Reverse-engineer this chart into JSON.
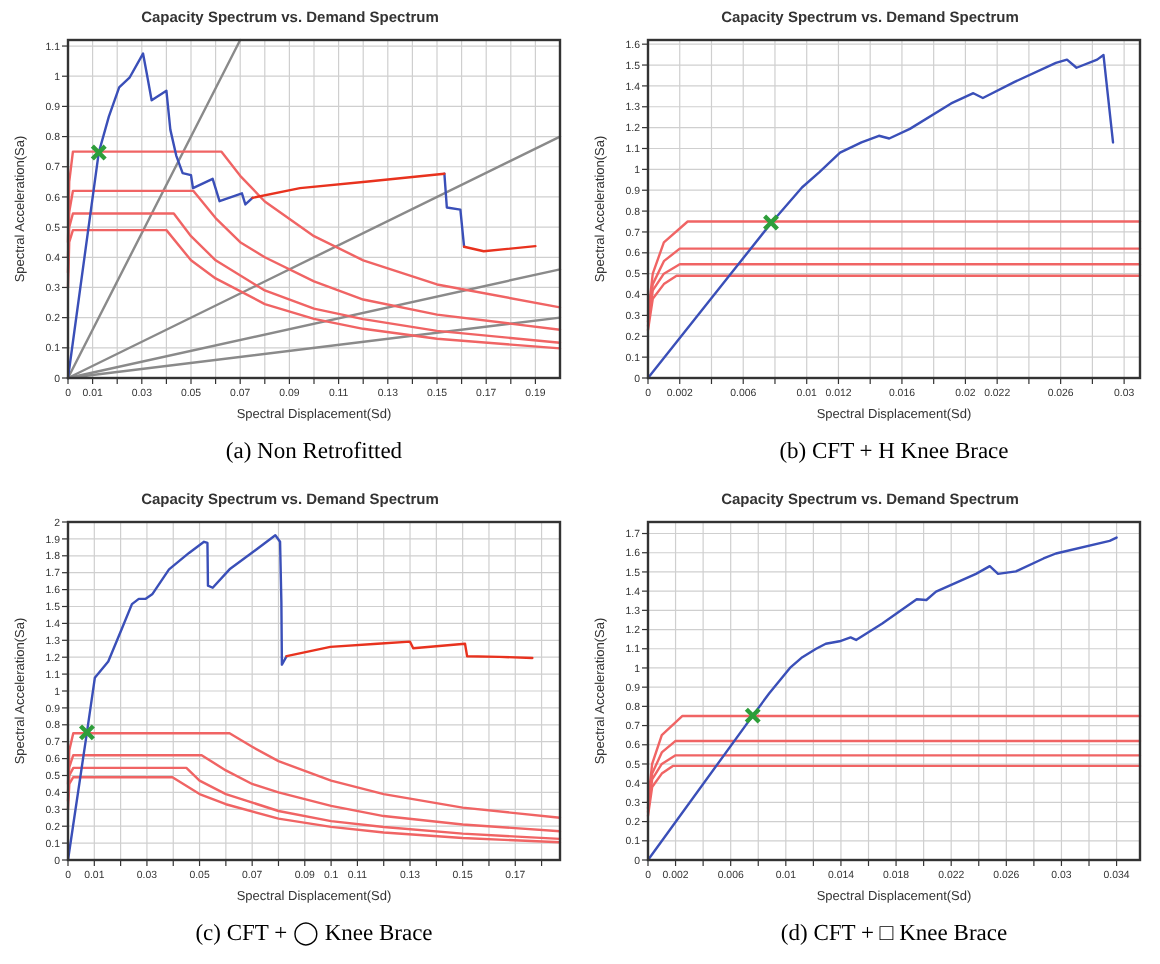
{
  "chart_data": [
    {
      "type": "line",
      "title": "Capacity Spectrum vs. Demand Spectrum",
      "xlabel": "Spectral Displacement(Sd)",
      "ylabel": "Spectral Acceleration(Sa)",
      "annotations": [
        "(a) Non Retrofitted"
      ],
      "grid": true,
      "xlim": [
        0,
        0.2
      ],
      "ylim": [
        0,
        1.12
      ],
      "xticks": [
        0,
        0.01,
        {
          "value": 0.02,
          "label": null
        },
        0.03,
        {
          "value": 0.04,
          "label": null
        },
        0.05,
        {
          "value": 0.06,
          "label": null
        },
        0.07,
        {
          "value": 0.08,
          "label": null
        },
        0.09,
        {
          "value": 0.1,
          "label": null
        },
        0.11,
        {
          "value": 0.12,
          "label": null
        },
        0.13,
        {
          "value": 0.14,
          "label": null
        },
        0.15,
        {
          "value": 0.16,
          "label": null
        },
        0.17,
        {
          "value": 0.18,
          "label": null
        },
        0.19
      ],
      "yticks": [
        0,
        0.1,
        0.2,
        0.3,
        0.4,
        0.5,
        0.6,
        0.7,
        0.8,
        0.9,
        1,
        1.1
      ],
      "series": [
        {
          "color": "#8a8a8a",
          "x": [
            0,
            0.07
          ],
          "values": [
            0,
            1.12
          ]
        },
        {
          "color": "#8a8a8a",
          "x": [
            0,
            0.2
          ],
          "values": [
            0,
            0.8
          ]
        },
        {
          "color": "#8a8a8a",
          "x": [
            0,
            0.2
          ],
          "values": [
            0,
            0.36
          ]
        },
        {
          "color": "#8a8a8a",
          "x": [
            0,
            0.2
          ],
          "values": [
            0,
            0.2
          ]
        },
        {
          "color": "#f06464",
          "x": [
            0,
            0.0005,
            0.002,
            0.0624,
            0.07,
            0.08,
            0.1,
            0.12,
            0.15,
            0.2
          ],
          "values": [
            0.45,
            0.65,
            0.75,
            0.75,
            0.67,
            0.585,
            0.47,
            0.39,
            0.31,
            0.234
          ]
        },
        {
          "color": "#f06464",
          "x": [
            0,
            0.0005,
            0.002,
            0.051,
            0.06,
            0.07,
            0.08,
            0.1,
            0.12,
            0.15,
            0.2
          ],
          "values": [
            0.4,
            0.55,
            0.62,
            0.62,
            0.53,
            0.45,
            0.4,
            0.32,
            0.26,
            0.21,
            0.16
          ]
        },
        {
          "color": "#f06464",
          "x": [
            0,
            0.0005,
            0.002,
            0.043,
            0.05,
            0.06,
            0.08,
            0.1,
            0.12,
            0.15,
            0.2
          ],
          "values": [
            0.35,
            0.5,
            0.545,
            0.545,
            0.47,
            0.39,
            0.29,
            0.23,
            0.195,
            0.156,
            0.117
          ]
        },
        {
          "color": "#f06464",
          "x": [
            0,
            0.0005,
            0.002,
            0.04,
            0.05,
            0.06,
            0.08,
            0.1,
            0.12,
            0.15,
            0.2
          ],
          "values": [
            0.3,
            0.45,
            0.49,
            0.49,
            0.39,
            0.33,
            0.245,
            0.196,
            0.163,
            0.13,
            0.098
          ]
        },
        {
          "color": "#3a4fb8",
          "x": [
            0,
            0.0125,
            0.0166,
            0.0208,
            0.025,
            0.0305,
            0.032,
            0.034,
            0.04,
            0.0416,
            0.044,
            0.0466,
            0.05,
            0.0508,
            0.0588,
            0.0616,
            0.0707,
            0.0721,
            0.075,
            null,
            0.153,
            0.154,
            0.1595,
            0.161
          ],
          "values": [
            0,
            0.747,
            0.866,
            0.963,
            0.995,
            1.075,
            1.01,
            0.92,
            0.952,
            0.823,
            0.737,
            0.679,
            0.672,
            0.629,
            0.66,
            0.586,
            0.612,
            0.575,
            0.597,
            null,
            0.677,
            0.565,
            0.558,
            0.435
          ]
        },
        {
          "color": "#e8321e",
          "x": [
            0.075,
            0.0943,
            0.122,
            0.153,
            null,
            0.161,
            0.169,
            0.19
          ],
          "values": [
            0.597,
            0.629,
            0.651,
            0.677,
            null,
            0.435,
            0.42,
            0.437
          ]
        },
        {
          "type": "scatter",
          "marker": "cross",
          "color": "#2e9e3a",
          "x": [
            0.0125
          ],
          "values": [
            0.747
          ]
        }
      ]
    },
    {
      "type": "line",
      "title": "Capacity Spectrum vs. Demand Spectrum",
      "xlabel": "Spectral Displacement(Sd)",
      "ylabel": "Spectral Acceleration(Sa)",
      "annotations": [
        "(b) CFT + H Knee Brace"
      ],
      "grid": true,
      "xlim": [
        0,
        0.031
      ],
      "ylim": [
        0,
        1.62
      ],
      "xticks": [
        0,
        0.002,
        {
          "value": 0.004,
          "label": null
        },
        0.006,
        {
          "value": 0.008,
          "label": null
        },
        0.01,
        0.012,
        {
          "value": 0.014,
          "label": null
        },
        0.016,
        {
          "value": 0.018,
          "label": null
        },
        0.02,
        0.022,
        {
          "value": 0.024,
          "label": null
        },
        0.026,
        {
          "value": 0.028,
          "label": null
        },
        0.03
      ],
      "yticks": [
        0,
        0.1,
        0.2,
        0.3,
        0.4,
        0.5,
        0.6,
        0.7,
        0.8,
        0.9,
        1,
        1.1,
        1.2,
        1.3,
        1.4,
        1.5,
        1.6
      ],
      "series": [
        {
          "color": "#f06464",
          "x": [
            0,
            0.0003,
            0.001,
            0.0025,
            0.031
          ],
          "values": [
            0.3,
            0.5,
            0.65,
            0.75,
            0.75
          ]
        },
        {
          "color": "#f06464",
          "x": [
            0,
            0.0003,
            0.001,
            0.002,
            0.031
          ],
          "values": [
            0.27,
            0.45,
            0.56,
            0.62,
            0.62
          ]
        },
        {
          "color": "#f06464",
          "x": [
            0,
            0.0003,
            0.001,
            0.002,
            0.031
          ],
          "values": [
            0.25,
            0.42,
            0.5,
            0.545,
            0.545
          ]
        },
        {
          "color": "#f06464",
          "x": [
            0,
            0.0003,
            0.001,
            0.0018,
            0.031
          ],
          "values": [
            0.23,
            0.38,
            0.45,
            0.49,
            0.49
          ]
        },
        {
          "color": "#3a4fb8",
          "x": [
            0,
            0.00775,
            0.0097,
            0.0108,
            0.0121,
            0.01345,
            0.01455,
            0.0152,
            0.0165,
            0.0191,
            0.0205,
            0.0211,
            0.0231,
            0.0257,
            0.0264,
            0.027,
            0.0283,
            0.0287,
            0.0293
          ],
          "values": [
            0,
            0.742,
            0.913,
            0.987,
            1.08,
            1.129,
            1.161,
            1.148,
            1.194,
            1.316,
            1.365,
            1.342,
            1.419,
            1.51,
            1.526,
            1.487,
            1.526,
            1.548,
            1.129
          ]
        },
        {
          "type": "scatter",
          "marker": "cross",
          "color": "#2e9e3a",
          "x": [
            0.00775
          ],
          "values": [
            0.745
          ]
        }
      ]
    },
    {
      "type": "line",
      "title": "Capacity Spectrum vs. Demand Spectrum",
      "xlabel": "Spectral Displacement(Sd)",
      "ylabel": "Spectral Acceleration(Sa)",
      "annotations": [
        "(c) CFT + ◯ Knee Brace"
      ],
      "grid": true,
      "xlim": [
        0,
        0.187
      ],
      "ylim": [
        0,
        2
      ],
      "xticks": [
        0,
        0.01,
        {
          "value": 0.02,
          "label": null
        },
        0.03,
        {
          "value": 0.04,
          "label": null
        },
        0.05,
        {
          "value": 0.06,
          "label": null
        },
        0.07,
        {
          "value": 0.08,
          "label": null
        },
        0.09,
        0.1,
        0.11,
        {
          "value": 0.12,
          "label": null
        },
        0.13,
        {
          "value": 0.14,
          "label": null
        },
        0.15,
        {
          "value": 0.16,
          "label": null
        },
        0.17,
        {
          "value": 0.18,
          "label": null
        }
      ],
      "yticks": [
        0,
        0.1,
        0.2,
        0.3,
        0.4,
        0.5,
        0.6,
        0.7,
        0.8,
        0.9,
        1,
        1.1,
        1.2,
        1.3,
        1.4,
        1.5,
        1.6,
        1.7,
        1.8,
        1.9,
        2
      ],
      "series": [
        {
          "color": "#f06464",
          "x": [
            0,
            0.0005,
            0.002,
            0.0614,
            0.07,
            0.08,
            0.1,
            0.12,
            0.15,
            0.187
          ],
          "values": [
            0.45,
            0.65,
            0.75,
            0.75,
            0.67,
            0.585,
            0.47,
            0.39,
            0.31,
            0.25
          ]
        },
        {
          "color": "#f06464",
          "x": [
            0,
            0.0005,
            0.002,
            0.0508,
            0.06,
            0.07,
            0.08,
            0.1,
            0.12,
            0.15,
            0.187
          ],
          "values": [
            0.4,
            0.55,
            0.62,
            0.62,
            0.53,
            0.45,
            0.4,
            0.32,
            0.26,
            0.21,
            0.17
          ]
        },
        {
          "color": "#f06464",
          "x": [
            0,
            0.0005,
            0.002,
            0.045,
            0.05,
            0.06,
            0.08,
            0.1,
            0.12,
            0.15,
            0.187
          ],
          "values": [
            0.35,
            0.5,
            0.545,
            0.545,
            0.47,
            0.39,
            0.29,
            0.23,
            0.195,
            0.156,
            0.125
          ]
        },
        {
          "color": "#f06464",
          "x": [
            0,
            0.0005,
            0.002,
            0.0397,
            0.05,
            0.06,
            0.08,
            0.1,
            0.12,
            0.15,
            0.187
          ],
          "values": [
            0.3,
            0.45,
            0.49,
            0.49,
            0.39,
            0.33,
            0.245,
            0.196,
            0.163,
            0.13,
            0.105
          ]
        },
        {
          "color": "#3a4fb8",
          "x": [
            0,
            0.0072,
            0.0102,
            0.0153,
            0.0205,
            0.0243,
            0.0269,
            0.0294,
            0.032,
            0.0384,
            0.046,
            0.0517,
            0.053,
            0.0532,
            0.055,
            0.0614,
            0.0716,
            0.0788,
            0.0806,
            0.0811,
            0.0813,
            0.0831
          ],
          "values": [
            0,
            0.755,
            1.078,
            1.175,
            1.37,
            1.514,
            1.545,
            1.545,
            1.572,
            1.72,
            1.817,
            1.883,
            1.876,
            1.623,
            1.611,
            1.72,
            1.837,
            1.922,
            1.883,
            1.525,
            1.156,
            1.206
          ]
        },
        {
          "color": "#e8321e",
          "x": [
            0.0831,
            0.0997,
            0.1176,
            0.13,
            0.1312,
            0.1509,
            0.1517,
            0.164,
            0.1765
          ],
          "values": [
            1.206,
            1.261,
            1.28,
            1.292,
            1.253,
            1.28,
            1.206,
            1.202,
            1.195
          ]
        },
        {
          "type": "scatter",
          "marker": "cross",
          "color": "#2e9e3a",
          "x": [
            0.0072
          ],
          "values": [
            0.755
          ]
        }
      ]
    },
    {
      "type": "line",
      "title": "Capacity Spectrum vs. Demand Spectrum",
      "xlabel": "Spectral Displacement(Sd)",
      "ylabel": "Spectral Acceleration(Sa)",
      "annotations": [
        "(d) CFT + □ Knee Brace"
      ],
      "grid": true,
      "xlim": [
        0,
        0.0357
      ],
      "ylim": [
        0,
        1.76
      ],
      "xticks": [
        0,
        0.002,
        {
          "value": 0.004,
          "label": null
        },
        0.006,
        {
          "value": 0.008,
          "label": null
        },
        0.01,
        {
          "value": 0.012,
          "label": null
        },
        0.014,
        {
          "value": 0.016,
          "label": null
        },
        0.018,
        {
          "value": 0.02,
          "label": null
        },
        0.022,
        {
          "value": 0.024,
          "label": null
        },
        0.026,
        {
          "value": 0.028,
          "label": null
        },
        0.03,
        {
          "value": 0.032,
          "label": null
        },
        0.034
      ],
      "yticks": [
        0,
        0.1,
        0.2,
        0.3,
        0.4,
        0.5,
        0.6,
        0.7,
        0.8,
        0.9,
        1,
        1.1,
        1.2,
        1.3,
        1.4,
        1.5,
        1.6,
        1.7
      ],
      "series": [
        {
          "color": "#f06464",
          "x": [
            0,
            0.0003,
            0.001,
            0.0025,
            0.0357
          ],
          "values": [
            0.3,
            0.5,
            0.65,
            0.75,
            0.75
          ]
        },
        {
          "color": "#f06464",
          "x": [
            0,
            0.0003,
            0.001,
            0.002,
            0.0357
          ],
          "values": [
            0.27,
            0.45,
            0.56,
            0.62,
            0.62
          ]
        },
        {
          "color": "#f06464",
          "x": [
            0,
            0.0003,
            0.001,
            0.002,
            0.0357
          ],
          "values": [
            0.25,
            0.42,
            0.5,
            0.545,
            0.545
          ]
        },
        {
          "color": "#f06464",
          "x": [
            0,
            0.0003,
            0.001,
            0.0018,
            0.0357
          ],
          "values": [
            0.23,
            0.38,
            0.45,
            0.49,
            0.49
          ]
        },
        {
          "color": "#3a4fb8",
          "x": [
            0,
            0.0076,
            0.0088,
            0.0103,
            0.0112,
            0.0122,
            0.0129,
            0.0139,
            0.0147,
            0.0151,
            0.017,
            0.0195,
            0.0202,
            0.0209,
            0.0238,
            0.0248,
            0.0254,
            0.0267,
            0.0287,
            0.0296,
            0.0335,
            0.034
          ],
          "values": [
            0,
            0.752,
            0.868,
            1.0,
            1.056,
            1.1,
            1.126,
            1.139,
            1.159,
            1.146,
            1.232,
            1.358,
            1.354,
            1.397,
            1.49,
            1.53,
            1.49,
            1.503,
            1.57,
            1.596,
            1.662,
            1.679
          ]
        },
        {
          "type": "scatter",
          "marker": "cross",
          "color": "#2e9e3a",
          "x": [
            0.0076
          ],
          "values": [
            0.752
          ]
        }
      ]
    }
  ]
}
